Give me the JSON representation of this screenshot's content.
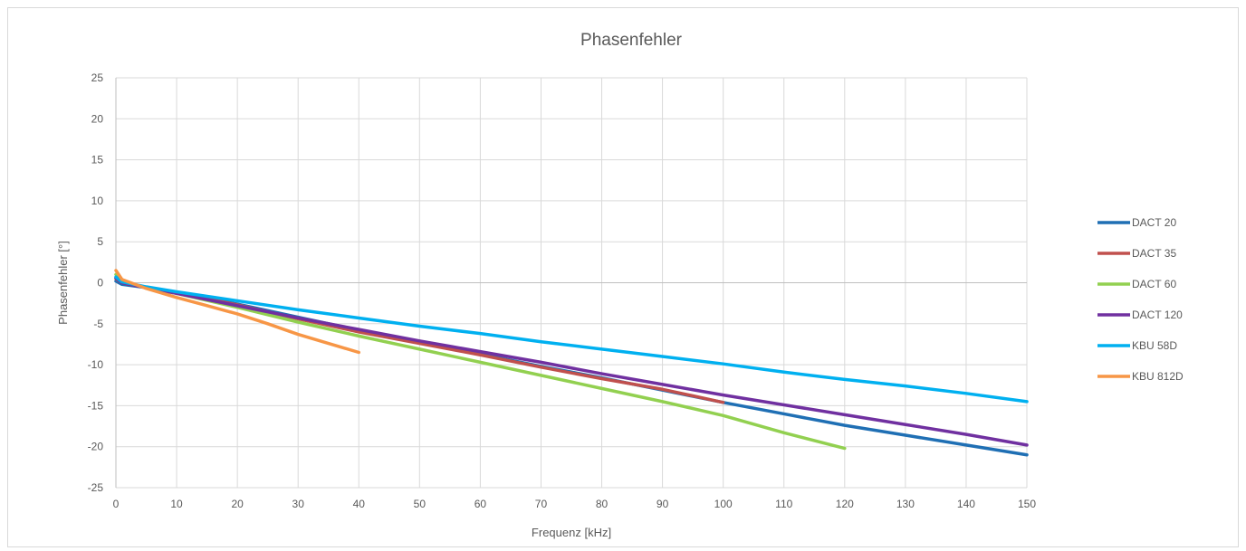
{
  "chart_data": {
    "type": "line",
    "title": "Phasenfehler",
    "xlabel": "Frequenz [kHz]",
    "ylabel": "Phasenfehler [°]",
    "xlim": [
      0,
      150
    ],
    "ylim": [
      -25,
      25
    ],
    "x_ticks": [
      0,
      10,
      20,
      30,
      40,
      50,
      60,
      70,
      80,
      90,
      100,
      110,
      120,
      130,
      140,
      150
    ],
    "y_ticks": [
      25,
      20,
      15,
      10,
      5,
      0,
      -5,
      -10,
      -15,
      -20,
      -25
    ],
    "grid": true,
    "legend_position": "right",
    "series": [
      {
        "name": "DACT 20",
        "color": "#1f6fb4",
        "x": [
          0,
          1,
          5,
          10,
          20,
          30,
          40,
          50,
          60,
          70,
          80,
          90,
          100,
          110,
          120,
          130,
          140,
          150
        ],
        "y": [
          0.2,
          -0.2,
          -0.6,
          -1.2,
          -2.6,
          -4.2,
          -5.8,
          -7.3,
          -8.7,
          -10.2,
          -11.6,
          -13.1,
          -14.6,
          -16.0,
          -17.4,
          -18.6,
          -19.8,
          -21.0
        ]
      },
      {
        "name": "DACT 35",
        "color": "#c0504d",
        "x": [
          0,
          1,
          5,
          10,
          20,
          30,
          40,
          50,
          60,
          70,
          80,
          90,
          100
        ],
        "y": [
          0.5,
          0.0,
          -0.6,
          -1.2,
          -2.7,
          -4.4,
          -6.0,
          -7.4,
          -8.8,
          -10.3,
          -11.7,
          -13.0,
          -14.6
        ]
      },
      {
        "name": "DACT 60",
        "color": "#92d050",
        "x": [
          0,
          1,
          5,
          10,
          20,
          30,
          40,
          50,
          60,
          70,
          80,
          90,
          100,
          110,
          120
        ],
        "y": [
          1.0,
          0.2,
          -0.6,
          -1.3,
          -3.0,
          -4.8,
          -6.5,
          -8.1,
          -9.7,
          -11.3,
          -12.9,
          -14.5,
          -16.2,
          -18.3,
          -20.2
        ]
      },
      {
        "name": "DACT 120",
        "color": "#7030a0",
        "x": [
          0,
          1,
          5,
          10,
          20,
          30,
          40,
          50,
          60,
          70,
          80,
          90,
          100,
          110,
          120,
          130,
          140,
          150
        ],
        "y": [
          0.6,
          0.0,
          -0.6,
          -1.3,
          -2.8,
          -4.3,
          -5.7,
          -7.1,
          -8.4,
          -9.7,
          -11.1,
          -12.4,
          -13.7,
          -14.9,
          -16.1,
          -17.3,
          -18.5,
          -19.8
        ]
      },
      {
        "name": "KBU 58D",
        "color": "#00b0f0",
        "x": [
          0,
          1,
          5,
          10,
          20,
          30,
          40,
          50,
          60,
          70,
          80,
          90,
          100,
          110,
          120,
          130,
          140,
          150
        ],
        "y": [
          0.7,
          0.1,
          -0.5,
          -1.1,
          -2.2,
          -3.3,
          -4.3,
          -5.3,
          -6.2,
          -7.2,
          -8.1,
          -9.0,
          -9.9,
          -10.9,
          -11.8,
          -12.6,
          -13.5,
          -14.5
        ]
      },
      {
        "name": "KBU 812D",
        "color": "#f79646",
        "x": [
          0,
          1,
          5,
          10,
          15,
          20,
          25,
          30,
          35,
          40
        ],
        "y": [
          1.5,
          0.4,
          -0.7,
          -1.8,
          -2.8,
          -3.8,
          -5.0,
          -6.3,
          -7.4,
          -8.5
        ]
      }
    ]
  }
}
